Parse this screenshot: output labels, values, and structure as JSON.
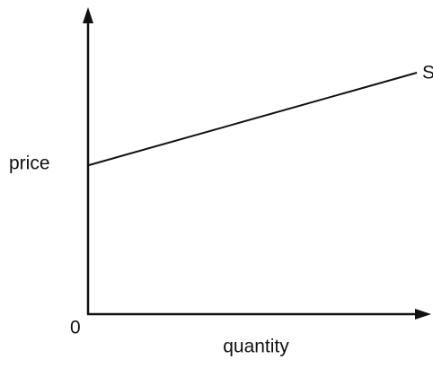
{
  "y_axis_label": "price",
  "x_axis_label": "quantity",
  "origin_label": "0",
  "curve_label": "S"
}
